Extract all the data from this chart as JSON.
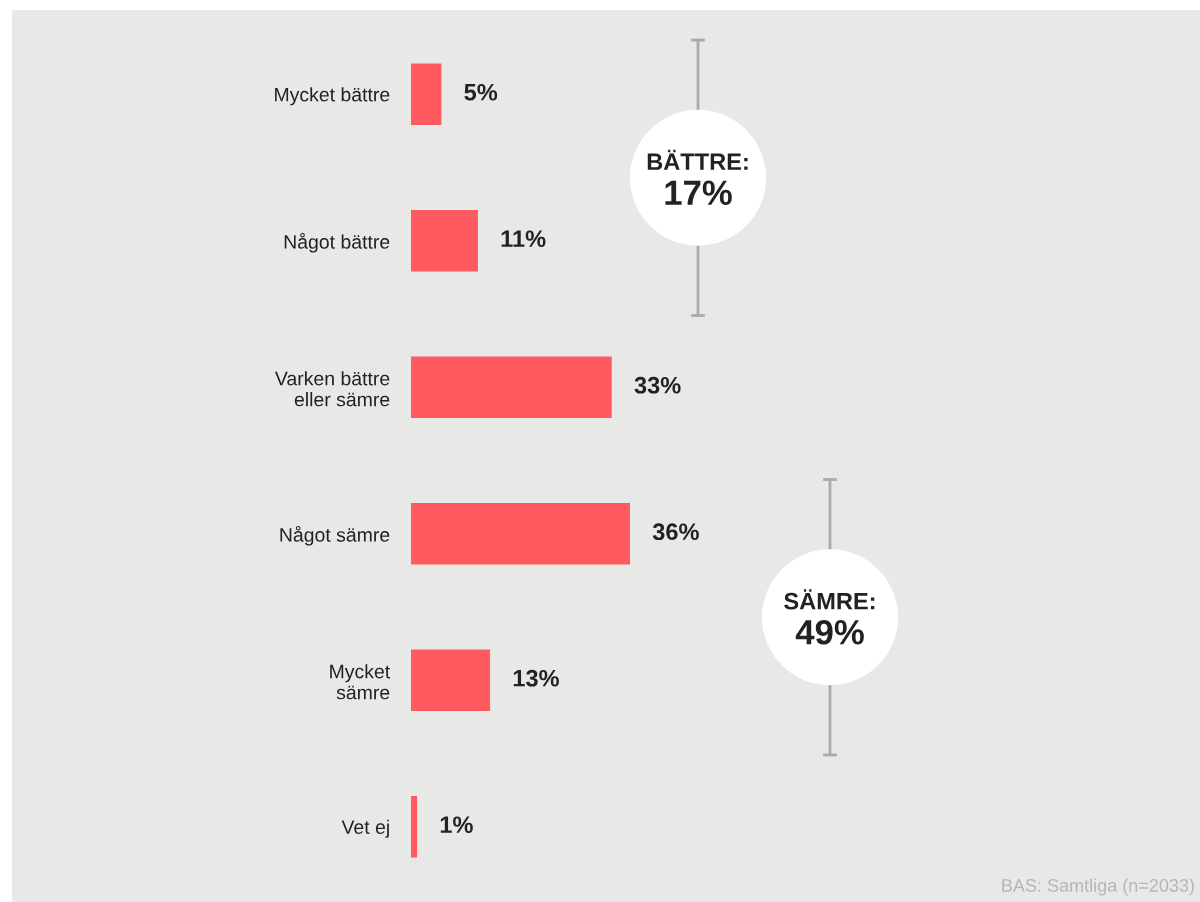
{
  "chart_data": {
    "type": "bar",
    "orientation": "horizontal",
    "categories": [
      "Mycket bättre",
      "Något bättre",
      "Varken bättre\neller sämre",
      "Något sämre",
      "Mycket\nsämre",
      "Vet ej"
    ],
    "values": [
      5,
      11,
      33,
      36,
      13,
      1
    ],
    "value_labels": [
      "5%",
      "11%",
      "33%",
      "36%",
      "13%",
      "1%"
    ],
    "color": "#ff5a5f",
    "tick_labels": "y",
    "grid": false,
    "annotations": [
      "BÄTTRE:\n17%",
      "SÄMRE:\n49%",
      "BAS: Samtliga (n=2033)"
    ]
  }
}
